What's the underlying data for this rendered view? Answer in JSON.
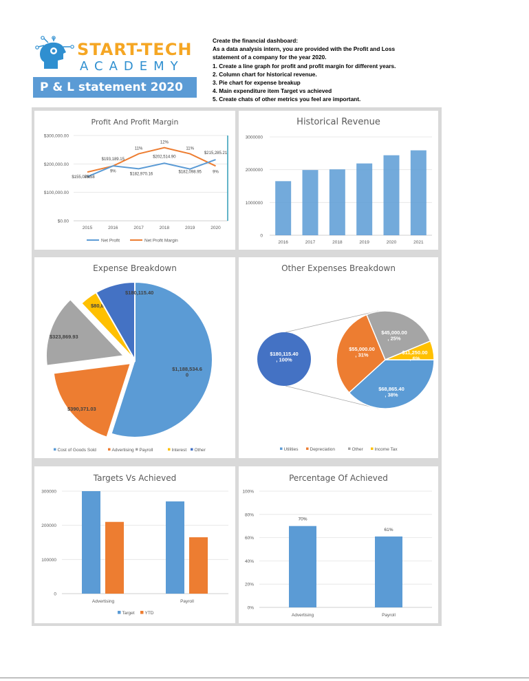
{
  "header": {
    "brand_line1": "START-TECH",
    "brand_line2": "ACADEMY",
    "banner": "P & L statement 2020",
    "brief_title": "Create the financial dashboard:",
    "brief_lines": [
      "As a data analysis intern, you are provided with the Profit and Loss",
      "statement of a company for the year 2020.",
      "1. Create a line graph for profit and profit margin for different years.",
      "2. Column chart for historical revenue.",
      "3. Pie chart for expense breakup",
      "4. Main expenditure item Target vs achieved",
      "5. Create chats of other metrics you feel are important."
    ]
  },
  "colors": {
    "blue": "#5b9bd5",
    "orange": "#ed7d31",
    "gray": "#a5a5a5",
    "yellow": "#ffc000",
    "darkblue": "#4472c4",
    "banner": "#5b9bd5",
    "brand_orange": "#f5a623",
    "brand_blue": "#2f8fd0"
  },
  "chart_data": [
    {
      "id": "profit",
      "type": "line",
      "title": "Profit And Profit Margin",
      "categories": [
        "2015",
        "2016",
        "2017",
        "2018",
        "2019",
        "2020"
      ],
      "y_ticks": [
        "$0.00",
        "$100,000.00",
        "$200,000.00",
        "$300,000.00"
      ],
      "ylim": [
        0,
        300000
      ],
      "series": [
        {
          "name": "Net Profit",
          "values": [
            155075.58,
            193189.15,
            182970.16,
            202514.9,
            182098.95,
            215285.21
          ],
          "labels": [
            "$155,075.58",
            "$193,189.15",
            "$182,970.16",
            "$202,514.90",
            "$182,098.95",
            "$215,285.21"
          ]
        },
        {
          "name": "Net Profit Margin",
          "values": [
            8,
            9,
            11,
            12,
            11,
            9
          ],
          "labels": [
            "8%",
            "9%",
            "11%",
            "12%",
            "11%",
            "9%"
          ]
        }
      ],
      "legend": "bottom"
    },
    {
      "id": "revenue",
      "type": "bar",
      "title": "Historical Revenue",
      "categories": [
        "2016",
        "2017",
        "2018",
        "2019",
        "2020",
        "2021"
      ],
      "values": [
        1650000,
        1990000,
        2010000,
        2190000,
        2440000,
        2590000
      ],
      "y_ticks": [
        "0",
        "1000000",
        "2000000",
        "3000000"
      ],
      "ylim": [
        0,
        3000000
      ]
    },
    {
      "id": "expense",
      "type": "pie",
      "title": "Expense Breakdown",
      "slices": [
        {
          "name": "Cost of Goods Sold",
          "value": 1188534.6,
          "label": "$1,188,534.6\n0"
        },
        {
          "name": "Advertising",
          "value": 390371.03,
          "label": "$390,371.03"
        },
        {
          "name": "Payroll",
          "value": 323869.93,
          "label": "$323,869.93"
        },
        {
          "name": "Interest",
          "value": 80847.55,
          "label": "$80,847.55"
        },
        {
          "name": "Other",
          "value": 180115.4,
          "label": "$180,115.40"
        }
      ],
      "legend": "bottom"
    },
    {
      "id": "other",
      "type": "pie",
      "title": "Other Expenses Breakdown",
      "left_pie": {
        "value": 180115.4,
        "label": "$180,115.40\n, 100%"
      },
      "slices": [
        {
          "name": "Utilities",
          "value": 68865.4,
          "label": "$68,865.40\n, 38%"
        },
        {
          "name": "Depreciation",
          "value": 55000.0,
          "label": "$55,000.00\n, 31%"
        },
        {
          "name": "Other",
          "value": 45000.0,
          "label": "$45,000.00\n, 25%"
        },
        {
          "name": "Income Tax",
          "value": 11250.0,
          "label": "$11,250.00\n, 6%"
        }
      ],
      "legend": "bottom"
    },
    {
      "id": "targets",
      "type": "bar",
      "title": "Targets Vs Achieved",
      "categories": [
        "Advertising",
        "Payroll"
      ],
      "series": [
        {
          "name": "Target",
          "values": [
            300000,
            270000
          ]
        },
        {
          "name": "YTD",
          "values": [
            210000,
            165000
          ]
        }
      ],
      "y_ticks": [
        "0",
        "100000",
        "200000",
        "300000"
      ],
      "ylim": [
        0,
        300000
      ],
      "legend": "bottom"
    },
    {
      "id": "percent",
      "type": "bar",
      "title": "Percentage Of Achieved",
      "categories": [
        "Advertising",
        "Payroll"
      ],
      "values": [
        70,
        61
      ],
      "labels": [
        "70%",
        "61%"
      ],
      "y_ticks": [
        "0%",
        "20%",
        "40%",
        "60%",
        "80%",
        "100%"
      ],
      "ylim": [
        0,
        100
      ]
    }
  ]
}
